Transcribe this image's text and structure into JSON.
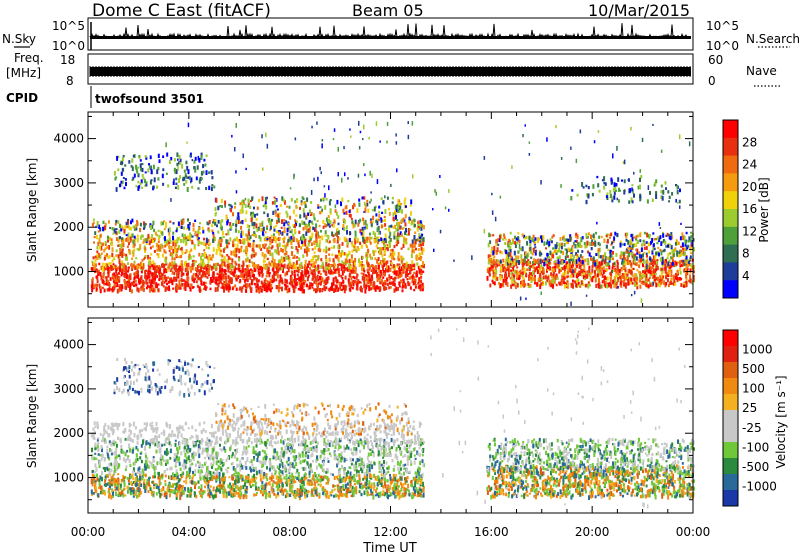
{
  "header": {
    "station": "Dome C East (fitACF)",
    "beam": "Beam 05",
    "date": "10/Mar/2015"
  },
  "top_panels": {
    "nsky_label": "N.Sky",
    "nsky_ticks": [
      "10^5",
      "10^0"
    ],
    "nsearch_label": "N.Search",
    "nsearch_ticks": [
      "10^5",
      "10^0"
    ],
    "freq_label_1": "Freq.",
    "freq_label_2": "[MHz]",
    "freq_ticks": [
      "18",
      "8"
    ],
    "nave_label": "Nave",
    "nave_ticks": [
      "60",
      "0"
    ],
    "cpid_label": "CPID",
    "cpid_value": "twofsound 3501"
  },
  "colors": {
    "power": [
      "#0000ff",
      "#1e3c9a",
      "#2f6e52",
      "#4ea03a",
      "#9ccc2e",
      "#f0d20a",
      "#f59b10",
      "#f06a10",
      "#e83010",
      "#ff0000"
    ],
    "velocity": [
      "#1a38a8",
      "#2a6a9a",
      "#2c8a3e",
      "#6fc83a",
      "#c8c8c8",
      "#c8c8c8",
      "#f5b020",
      "#f08a10",
      "#e06010",
      "#e02010",
      "#ff0000"
    ]
  },
  "chart_data": [
    {
      "type": "heatmap",
      "name": "power-panel",
      "ylabel": "Slant Range [km]",
      "yticks": [
        1000,
        2000,
        3000,
        4000
      ],
      "ylim": [
        200,
        4600
      ],
      "xticks": [
        "00:00",
        "04:00",
        "08:00",
        "12:00",
        "16:00",
        "20:00",
        "00:00"
      ],
      "colorbar_label": "Power [dB]",
      "colorbar_ticks": [
        "28",
        "24",
        "20",
        "16",
        "12",
        "8",
        "4"
      ]
    },
    {
      "type": "heatmap",
      "name": "velocity-panel",
      "ylabel": "Slant Range [km]",
      "yticks": [
        1000,
        2000,
        3000,
        4000
      ],
      "ylim": [
        200,
        4600
      ],
      "xticks": [
        "00:00",
        "04:00",
        "08:00",
        "12:00",
        "16:00",
        "20:00",
        "00:00"
      ],
      "xlabel": "Time UT",
      "colorbar_label": "Velocity [m s⁻¹]",
      "colorbar_ticks": [
        "1000",
        "500",
        "100",
        "25",
        "-25",
        "-100",
        "-500",
        "-1000"
      ]
    }
  ]
}
